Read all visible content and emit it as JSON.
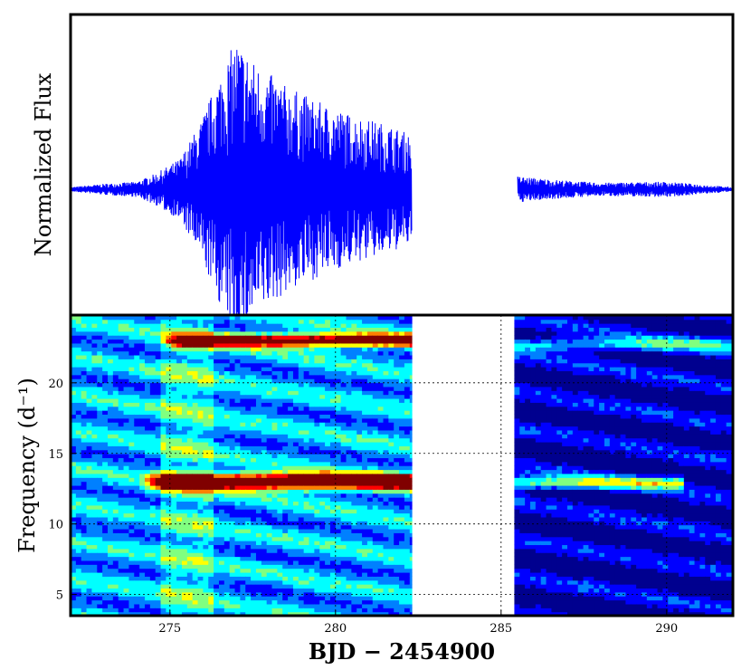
{
  "figure": {
    "shared_xlabel": "BJD − 2454900",
    "background": "#ffffff"
  },
  "chart_data": [
    {
      "type": "line",
      "ylabel": "Normalized Flux",
      "xlabel": "",
      "xlim": [
        272,
        292
      ],
      "ylim": [
        -1.15,
        1.6
      ],
      "grid": false,
      "line_color": "#0000ff",
      "series": [
        {
          "description": "rapidly oscillating flux; quiescent, then a bright outburst peaking near x=277 that decays until the data gap",
          "segments": [
            {
              "x_range": [
                272.0,
                282.3
              ],
              "envelope": [
                {
                  "x": 272.0,
                  "amp": 0.02
                },
                {
                  "x": 273.0,
                  "amp": 0.05
                },
                {
                  "x": 274.0,
                  "amp": 0.07
                },
                {
                  "x": 274.6,
                  "amp": 0.15
                },
                {
                  "x": 275.3,
                  "amp": 0.28
                },
                {
                  "x": 275.9,
                  "amp": 0.6
                },
                {
                  "x": 276.5,
                  "amp": 1.05
                },
                {
                  "x": 277.0,
                  "amp": 1.38
                },
                {
                  "x": 277.6,
                  "amp": 1.15
                },
                {
                  "x": 278.5,
                  "amp": 0.95
                },
                {
                  "x": 279.5,
                  "amp": 0.8
                },
                {
                  "x": 280.5,
                  "amp": 0.68
                },
                {
                  "x": 281.5,
                  "amp": 0.6
                },
                {
                  "x": 282.3,
                  "amp": 0.5
                }
              ]
            },
            {
              "x_range": [
                285.5,
                292.0
              ],
              "envelope": [
                {
                  "x": 285.5,
                  "amp": 0.12
                },
                {
                  "x": 286.5,
                  "amp": 0.09
                },
                {
                  "x": 288.0,
                  "amp": 0.06
                },
                {
                  "x": 290.0,
                  "amp": 0.07
                },
                {
                  "x": 292.0,
                  "amp": 0.02
                }
              ]
            }
          ]
        }
      ]
    },
    {
      "type": "heatmap",
      "ylabel": "Frequency (d⁻¹)",
      "xlabel": "BJD − 2454900",
      "xlim": [
        272,
        292
      ],
      "ylim": [
        3.5,
        24.8
      ],
      "grid": true,
      "grid_style": "dotted",
      "x_ticks": [
        275,
        280,
        285,
        290
      ],
      "y_ticks": [
        5,
        10,
        15,
        20
      ],
      "colormap": [
        "#00008f",
        "#0000ff",
        "#0080ff",
        "#00ffff",
        "#80ff80",
        "#ffff00",
        "#ff8000",
        "#ff0000",
        "#800000"
      ],
      "gap": [
        282.3,
        285.4
      ],
      "segments": [
        {
          "x_range": [
            272.0,
            282.3
          ],
          "bands": [
            {
              "frequency": 12.9,
              "x_start": 274.8,
              "x_end": 282.3,
              "level": 0.95,
              "width": 0.55
            },
            {
              "frequency": 22.9,
              "x_start": 275.4,
              "x_end": 282.3,
              "level": 0.78,
              "width": 0.45
            }
          ],
          "background_level": 0.32
        },
        {
          "x_range": [
            285.4,
            292.0
          ],
          "bands": [
            {
              "frequency": 12.8,
              "x_start": 285.4,
              "x_end": 290.5,
              "level": 0.45,
              "width": 0.45
            },
            {
              "frequency": 22.6,
              "x_start": 285.4,
              "x_end": 292.0,
              "level": 0.3,
              "width": 0.5
            }
          ],
          "background_level": 0.1
        }
      ]
    }
  ]
}
